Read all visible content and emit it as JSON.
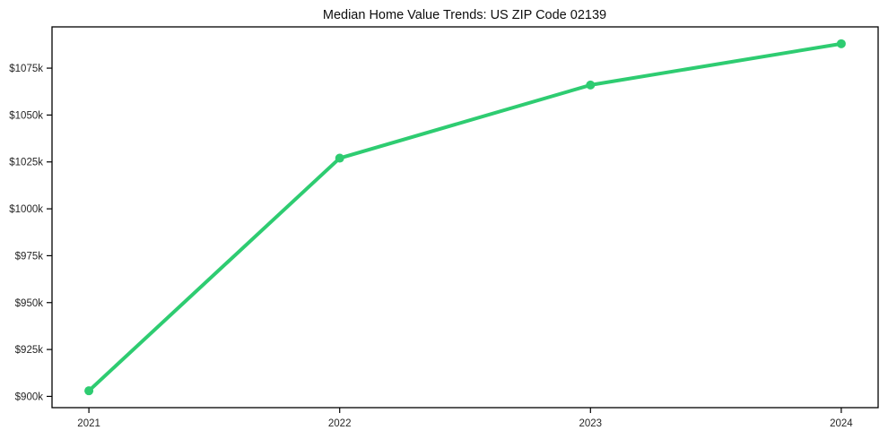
{
  "chart_data": {
    "type": "line",
    "title": "Median Home Value Trends: US ZIP Code 02139",
    "xlabel": "",
    "ylabel": "",
    "units": "USD thousands",
    "x": [
      2021,
      2022,
      2023,
      2024
    ],
    "x_tick_labels": [
      "2021",
      "2022",
      "2023",
      "2024"
    ],
    "series": [
      {
        "name": "Median home value",
        "values": [
          903,
          1027,
          1066,
          1088
        ],
        "color": "#2ecc71"
      }
    ],
    "y_tick_values": [
      900,
      925,
      950,
      975,
      1000,
      1025,
      1050,
      1075
    ],
    "y_tick_labels": [
      "$900k",
      "$925k",
      "$950k",
      "$975k",
      "$1000k",
      "$1025k",
      "$1050k",
      "$1075k"
    ],
    "ylim": [
      894,
      1097
    ],
    "xlim": [
      2020.853,
      2024.147
    ],
    "grid": false,
    "legend": "none",
    "marker": "circle"
  }
}
